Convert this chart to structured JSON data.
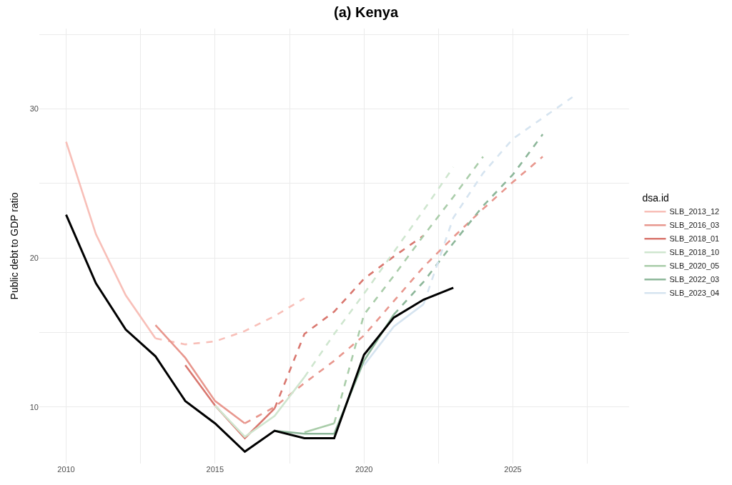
{
  "chart_data": {
    "type": "line",
    "title": "(a) Kenya",
    "ylabel": "Public debt to GDP ratio",
    "legend_title": "dsa.id",
    "legend": "right",
    "grid": true,
    "xlim": [
      2009.1,
      2028.9
    ],
    "xticks": [
      2010,
      {
        "value": 2012.5,
        "label": null
      },
      2015,
      {
        "value": 2017.5,
        "label": null
      },
      2020,
      {
        "value": 2022.5,
        "label": null
      },
      2025,
      {
        "value": 2027.5,
        "label": null
      }
    ],
    "ylim": [
      6.2,
      35.4
    ],
    "yticks": [
      10,
      {
        "value": 15,
        "label": null
      },
      20,
      {
        "value": 25,
        "label": null
      },
      30,
      {
        "value": 35,
        "label": null
      }
    ],
    "series": [
      {
        "name": "SLB_2013_12",
        "color": "#f8bfb8",
        "line_style": "solid",
        "x": [
          2010,
          2011,
          2012,
          2013
        ],
        "values": [
          27.8,
          21.6,
          17.5,
          14.6
        ]
      },
      {
        "color": "#f8bfb8",
        "line_style": "dashed",
        "x": [
          2013,
          2014,
          2015,
          2016,
          2017,
          2018
        ],
        "values": [
          14.6,
          14.2,
          14.4,
          15.1,
          16.1,
          17.3
        ]
      },
      {
        "name": "SLB_2016_03",
        "color": "#e8978e",
        "line_style": "solid",
        "x": [
          2013,
          2014,
          2015,
          2016
        ],
        "values": [
          15.5,
          13.3,
          10.4,
          8.9
        ]
      },
      {
        "color": "#e8978e",
        "line_style": "dashed",
        "x": [
          2016,
          2017,
          2018,
          2019,
          2020,
          2021,
          2022,
          2023,
          2024,
          2025,
          2026
        ],
        "values": [
          8.9,
          10.0,
          11.6,
          13.1,
          14.8,
          17.1,
          19.4,
          21.4,
          23.3,
          25.1,
          26.8
        ]
      },
      {
        "name": "SLB_2018_01",
        "color": "#d9776f",
        "line_style": "solid",
        "x": [
          2014,
          2015,
          2016,
          2017
        ],
        "values": [
          12.8,
          10.1,
          7.9,
          9.9
        ]
      },
      {
        "color": "#d9776f",
        "line_style": "dashed",
        "x": [
          2017,
          2018,
          2019,
          2020,
          2021,
          2022
        ],
        "values": [
          9.9,
          14.9,
          16.4,
          18.6,
          20.1,
          21.5
        ]
      },
      {
        "name": "SLB_2018_10",
        "color": "#cfe6cf",
        "line_style": "solid",
        "x": [
          2015,
          2016,
          2017,
          2018
        ],
        "values": [
          10.1,
          8.0,
          9.4,
          12.0
        ]
      },
      {
        "color": "#cfe6cf",
        "line_style": "dashed",
        "x": [
          2018,
          2019,
          2020,
          2021,
          2022,
          2023
        ],
        "values": [
          12.0,
          14.9,
          17.6,
          20.4,
          23.2,
          26.1
        ]
      },
      {
        "name": "SLB_2020_05",
        "color": "#aacdaa",
        "line_style": "solid",
        "x": [
          2018,
          2019
        ],
        "values": [
          8.3,
          8.9
        ]
      },
      {
        "color": "#aacdaa",
        "line_style": "dashed",
        "x": [
          2019,
          2020,
          2021,
          2022,
          2023,
          2024
        ],
        "values": [
          8.9,
          16.2,
          18.8,
          21.5,
          24.1,
          26.8
        ]
      },
      {
        "name": "SLB_2022_03",
        "color": "#8db79a",
        "line_style": "solid",
        "x": [
          2017,
          2018,
          2019,
          2020,
          2021
        ],
        "values": [
          8.4,
          8.2,
          8.2,
          13.1,
          16.2
        ]
      },
      {
        "color": "#8db79a",
        "line_style": "dashed",
        "x": [
          2021,
          2022,
          2023,
          2024,
          2025,
          2026
        ],
        "values": [
          16.2,
          18.4,
          21.0,
          23.5,
          25.6,
          28.3
        ]
      },
      {
        "name": "SLB_2023_04",
        "color": "#d6e4f0",
        "line_style": "solid",
        "x": [
          2020,
          2021,
          2022
        ],
        "values": [
          12.8,
          15.4,
          16.9
        ]
      },
      {
        "color": "#d6e4f0",
        "line_style": "dashed",
        "x": [
          2022,
          2023,
          2024,
          2025,
          2026,
          2027
        ],
        "values": [
          16.9,
          22.7,
          25.7,
          28.0,
          29.4,
          30.8
        ]
      },
      {
        "color": "#000000",
        "line_style": "solid",
        "x": [
          2010,
          2011,
          2012,
          2013,
          2014,
          2015,
          2016,
          2017,
          2018,
          2019,
          2020,
          2021,
          2022,
          2023
        ],
        "values": [
          22.9,
          18.3,
          15.2,
          13.4,
          10.4,
          8.9,
          7.0,
          8.4,
          7.9,
          7.9,
          13.5,
          16.0,
          17.2,
          18.0
        ]
      }
    ]
  }
}
